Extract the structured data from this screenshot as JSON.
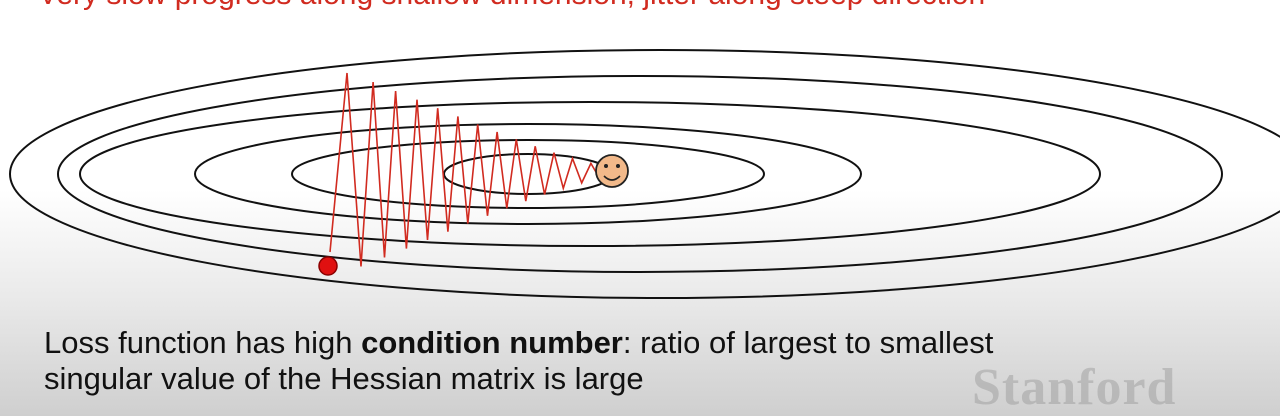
{
  "top_caption": "Very slow progress along shallow dimension, jitter along steep direction",
  "explanation": {
    "line1_before": "Loss function has high ",
    "line1_bold": "condition number",
    "line1_after": ": ratio of largest to smallest",
    "line2": "singular value of the Hessian matrix is large"
  },
  "watermark": "Stanford",
  "colors": {
    "caption": "#d12b20",
    "path": "#d12b20",
    "start_point": "#e01010",
    "contour": "#111111",
    "smiley_face": "#f2b98a"
  },
  "icons": {
    "start": "red-dot",
    "minimum": "smiley-face"
  }
}
